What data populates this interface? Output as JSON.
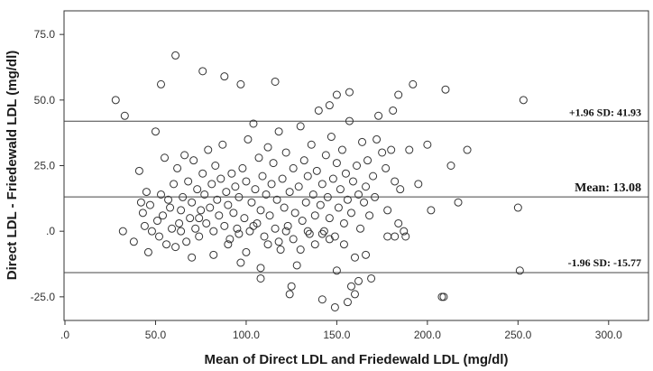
{
  "chart_data": {
    "type": "scatter",
    "xlabel": "Mean of Direct LDL and Friedewald LDL (mg/dl)",
    "ylabel": "Direct LDL - Friedewald LDL (mg/dl)",
    "xlim": [
      -0.5,
      322
    ],
    "ylim": [
      -34,
      84
    ],
    "x_ticks": [
      0,
      50,
      100,
      150,
      200,
      250,
      300
    ],
    "x_tick_labels": [
      ".0",
      "50.0",
      "100.0",
      "150.0",
      "200.0",
      "250.0",
      "300.0"
    ],
    "y_ticks": [
      -25,
      0,
      25,
      50,
      75
    ],
    "y_tick_labels": [
      "-25.0",
      ".0",
      "25.0",
      "50.0",
      "75.0"
    ],
    "grid": false,
    "marker": "open-circle",
    "reference_lines": [
      {
        "value": 41.93,
        "label": "+1.96 SD: 41.93"
      },
      {
        "value": 13.08,
        "label": "Mean: 13.08"
      },
      {
        "value": -15.77,
        "label": "-1.96 SD: -15.77"
      }
    ],
    "points": [
      [
        28,
        50
      ],
      [
        33,
        44
      ],
      [
        53,
        56
      ],
      [
        61,
        67
      ],
      [
        76,
        61
      ],
      [
        88,
        59
      ],
      [
        97,
        56
      ],
      [
        116,
        57
      ],
      [
        146,
        48
      ],
      [
        150,
        52
      ],
      [
        157,
        53
      ],
      [
        181,
        46
      ],
      [
        184,
        52
      ],
      [
        192,
        56
      ],
      [
        210,
        54
      ],
      [
        253,
        50
      ],
      [
        32,
        0
      ],
      [
        38,
        -4
      ],
      [
        41,
        23
      ],
      [
        42,
        11
      ],
      [
        43,
        7
      ],
      [
        44,
        2
      ],
      [
        45,
        15
      ],
      [
        46,
        -8
      ],
      [
        47,
        10
      ],
      [
        48,
        0
      ],
      [
        50,
        38
      ],
      [
        51,
        4
      ],
      [
        52,
        -2
      ],
      [
        53,
        14
      ],
      [
        54,
        6
      ],
      [
        55,
        28
      ],
      [
        56,
        -5
      ],
      [
        57,
        12
      ],
      [
        58,
        9
      ],
      [
        59,
        1
      ],
      [
        60,
        18
      ],
      [
        61,
        -6
      ],
      [
        62,
        24
      ],
      [
        63,
        3
      ],
      [
        64,
        8
      ],
      [
        65,
        13
      ],
      [
        66,
        29
      ],
      [
        67,
        -4
      ],
      [
        68,
        19
      ],
      [
        69,
        5
      ],
      [
        70,
        11
      ],
      [
        71,
        27
      ],
      [
        72,
        1
      ],
      [
        73,
        16
      ],
      [
        74,
        -2
      ],
      [
        75,
        8
      ],
      [
        76,
        22
      ],
      [
        77,
        14
      ],
      [
        78,
        3
      ],
      [
        79,
        31
      ],
      [
        80,
        9
      ],
      [
        81,
        18
      ],
      [
        82,
        0
      ],
      [
        83,
        25
      ],
      [
        84,
        12
      ],
      [
        85,
        6
      ],
      [
        86,
        20
      ],
      [
        87,
        33
      ],
      [
        88,
        2
      ],
      [
        89,
        15
      ],
      [
        90,
        10
      ],
      [
        91,
        -3
      ],
      [
        92,
        22
      ],
      [
        93,
        7
      ],
      [
        94,
        17
      ],
      [
        95,
        1
      ],
      [
        96,
        13
      ],
      [
        97,
        -12
      ],
      [
        98,
        24
      ],
      [
        99,
        5
      ],
      [
        100,
        19
      ],
      [
        101,
        35
      ],
      [
        102,
        0
      ],
      [
        103,
        11
      ],
      [
        104,
        41
      ],
      [
        105,
        16
      ],
      [
        106,
        3
      ],
      [
        107,
        28
      ],
      [
        108,
        8
      ],
      [
        109,
        21
      ],
      [
        110,
        -2
      ],
      [
        111,
        14
      ],
      [
        112,
        32
      ],
      [
        113,
        6
      ],
      [
        114,
        18
      ],
      [
        115,
        26
      ],
      [
        116,
        1
      ],
      [
        117,
        12
      ],
      [
        118,
        38
      ],
      [
        119,
        -7
      ],
      [
        120,
        20
      ],
      [
        121,
        9
      ],
      [
        122,
        30
      ],
      [
        123,
        2
      ],
      [
        124,
        15
      ],
      [
        125,
        -21
      ],
      [
        126,
        24
      ],
      [
        127,
        7
      ],
      [
        128,
        -13
      ],
      [
        129,
        17
      ],
      [
        130,
        40
      ],
      [
        131,
        4
      ],
      [
        132,
        27
      ],
      [
        133,
        11
      ],
      [
        134,
        21
      ],
      [
        135,
        -1
      ],
      [
        136,
        33
      ],
      [
        137,
        14
      ],
      [
        138,
        6
      ],
      [
        139,
        23
      ],
      [
        140,
        46
      ],
      [
        141,
        10
      ],
      [
        142,
        18
      ],
      [
        143,
        0
      ],
      [
        144,
        29
      ],
      [
        145,
        13
      ],
      [
        146,
        5
      ],
      [
        147,
        36
      ],
      [
        148,
        20
      ],
      [
        149,
        -2
      ],
      [
        150,
        26
      ],
      [
        151,
        9
      ],
      [
        152,
        16
      ],
      [
        153,
        31
      ],
      [
        154,
        3
      ],
      [
        155,
        22
      ],
      [
        156,
        12
      ],
      [
        157,
        42
      ],
      [
        158,
        7
      ],
      [
        159,
        19
      ],
      [
        160,
        -10
      ],
      [
        161,
        25
      ],
      [
        162,
        14
      ],
      [
        163,
        1
      ],
      [
        164,
        34
      ],
      [
        165,
        11
      ],
      [
        166,
        17
      ],
      [
        167,
        27
      ],
      [
        168,
        6
      ],
      [
        169,
        -18
      ],
      [
        170,
        21
      ],
      [
        171,
        13
      ],
      [
        172,
        35
      ],
      [
        173,
        44
      ],
      [
        175,
        30
      ],
      [
        177,
        24
      ],
      [
        178,
        8
      ],
      [
        180,
        31
      ],
      [
        182,
        19
      ],
      [
        184,
        3
      ],
      [
        185,
        16
      ],
      [
        187,
        0
      ],
      [
        188,
        -2
      ],
      [
        190,
        31
      ],
      [
        195,
        18
      ],
      [
        200,
        33
      ],
      [
        202,
        8
      ],
      [
        213,
        25
      ],
      [
        217,
        11
      ],
      [
        222,
        31
      ],
      [
        250,
        9
      ],
      [
        64,
        0
      ],
      [
        70,
        -10
      ],
      [
        74,
        5
      ],
      [
        82,
        -9
      ],
      [
        90,
        -5
      ],
      [
        96,
        -1
      ],
      [
        100,
        -8
      ],
      [
        104,
        2
      ],
      [
        108,
        -14
      ],
      [
        112,
        -5
      ],
      [
        118,
        -4
      ],
      [
        122,
        0
      ],
      [
        126,
        -3
      ],
      [
        130,
        -7
      ],
      [
        134,
        0
      ],
      [
        138,
        -5
      ],
      [
        142,
        -1
      ],
      [
        146,
        -3
      ],
      [
        150,
        -15
      ],
      [
        154,
        -5
      ],
      [
        158,
        -21
      ],
      [
        162,
        -19
      ],
      [
        166,
        -9
      ],
      [
        178,
        -2
      ],
      [
        182,
        -2
      ],
      [
        108,
        -18
      ],
      [
        124,
        -24
      ],
      [
        142,
        -26
      ],
      [
        156,
        -27
      ],
      [
        149,
        -29
      ],
      [
        160,
        -24
      ],
      [
        208,
        -25
      ],
      [
        209,
        -25
      ],
      [
        251,
        -15
      ]
    ]
  }
}
